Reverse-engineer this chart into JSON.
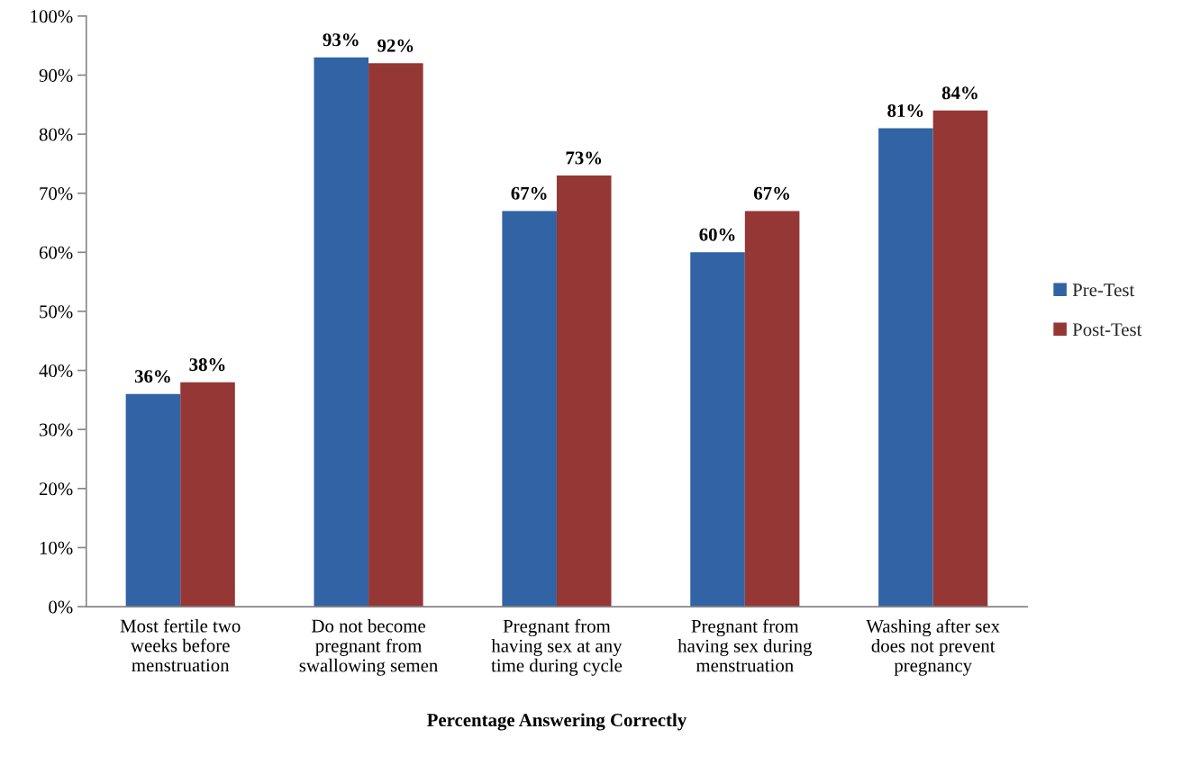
{
  "chart_data": {
    "type": "bar",
    "xlabel": "Percentage Answering Correctly",
    "categories": [
      "Most fertile two\nweeks before\nmenstruation",
      "Do not become\npregnant from\nswallowing semen",
      "Pregnant from\nhaving sex at any\ntime during cycle",
      "Pregnant from\nhaving sex during\nmenstruation",
      "Washing after sex\ndoes not prevent\npregnancy"
    ],
    "series": [
      {
        "name": "Pre-Test",
        "color": "#3163a5",
        "values": [
          36,
          93,
          67,
          60,
          81
        ],
        "value_labels": [
          "36%",
          "93%",
          "67%",
          "60%",
          "81%"
        ]
      },
      {
        "name": "Post-Test",
        "color": "#953735",
        "values": [
          38,
          92,
          73,
          67,
          84
        ],
        "value_labels": [
          "38%",
          "92%",
          "73%",
          "67%",
          "84%"
        ]
      }
    ],
    "ylim": [
      0,
      100
    ],
    "yticks": [
      {
        "value": 0,
        "label": "0%"
      },
      {
        "value": 10,
        "label": "10%"
      },
      {
        "value": 20,
        "label": "20%"
      },
      {
        "value": 30,
        "label": "30%"
      },
      {
        "value": 40,
        "label": "40%"
      },
      {
        "value": 50,
        "label": "50%"
      },
      {
        "value": 60,
        "label": "60%"
      },
      {
        "value": 70,
        "label": "70%"
      },
      {
        "value": 80,
        "label": "80%"
      },
      {
        "value": 90,
        "label": "90%"
      },
      {
        "value": 100,
        "label": "100%"
      }
    ],
    "grid": false,
    "legend": "right"
  }
}
